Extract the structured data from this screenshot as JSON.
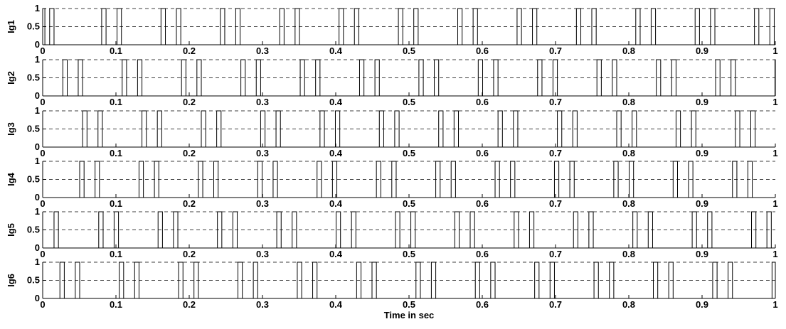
{
  "chart_data": [
    {
      "type": "line",
      "ylabel": "Ig1",
      "xlim": [
        0,
        1
      ],
      "ylim": [
        0,
        1
      ],
      "yticks": [
        "0",
        "0.5",
        "1"
      ],
      "xticks": [
        "0",
        "0.1",
        "0.2",
        "0.3",
        "0.4",
        "0.5",
        "0.6",
        "0.7",
        "0.8",
        "0.9",
        "1"
      ],
      "grid_y": true,
      "pulses": [
        [
          0.0,
          0.003
        ],
        [
          0.0095,
          0.0155
        ],
        [
          0.0805,
          0.0865
        ],
        [
          0.1015,
          0.1075
        ],
        [
          0.1615,
          0.1675
        ],
        [
          0.1825,
          0.1885
        ],
        [
          0.2425,
          0.2485
        ],
        [
          0.2635,
          0.2695
        ],
        [
          0.3235,
          0.3295
        ],
        [
          0.3445,
          0.3505
        ],
        [
          0.4045,
          0.4105
        ],
        [
          0.4255,
          0.4315
        ],
        [
          0.4855,
          0.4915
        ],
        [
          0.5065,
          0.5125
        ],
        [
          0.5665,
          0.5725
        ],
        [
          0.5875,
          0.5935
        ],
        [
          0.6475,
          0.6535
        ],
        [
          0.6685,
          0.6745
        ],
        [
          0.7285,
          0.7345
        ],
        [
          0.7495,
          0.7555
        ],
        [
          0.8095,
          0.8155
        ],
        [
          0.8305,
          0.8365
        ],
        [
          0.8905,
          0.8965
        ],
        [
          0.9115,
          0.9175
        ],
        [
          0.9715,
          0.9775
        ],
        [
          0.9925,
          0.9985
        ]
      ]
    },
    {
      "type": "line",
      "ylabel": "Ig2",
      "xlim": [
        0,
        1
      ],
      "ylim": [
        0,
        1
      ],
      "yticks": [
        "0",
        "0.5",
        "1"
      ],
      "xticks": [
        "0",
        "0.1",
        "0.2",
        "0.3",
        "0.4",
        "0.5",
        "0.6",
        "0.7",
        "0.8",
        "0.9",
        "1"
      ],
      "grid_y": true,
      "pulses": [
        [
          0.0275,
          0.0335
        ],
        [
          0.0485,
          0.0545
        ],
        [
          0.1085,
          0.1145
        ],
        [
          0.1295,
          0.1355
        ],
        [
          0.1895,
          0.1955
        ],
        [
          0.2105,
          0.2165
        ],
        [
          0.2705,
          0.2765
        ],
        [
          0.2915,
          0.2975
        ],
        [
          0.3515,
          0.3575
        ],
        [
          0.3725,
          0.3785
        ],
        [
          0.4325,
          0.4385
        ],
        [
          0.4535,
          0.4595
        ],
        [
          0.5135,
          0.5195
        ],
        [
          0.5345,
          0.5405
        ],
        [
          0.5945,
          0.6005
        ],
        [
          0.6155,
          0.6215
        ],
        [
          0.6755,
          0.6815
        ],
        [
          0.6965,
          0.7025
        ],
        [
          0.7565,
          0.7625
        ],
        [
          0.7775,
          0.7835
        ],
        [
          0.8375,
          0.8435
        ],
        [
          0.8585,
          0.8645
        ],
        [
          0.9185,
          0.9245
        ],
        [
          0.9395,
          0.9455
        ],
        [
          0.9995,
          1.0
        ]
      ]
    },
    {
      "type": "line",
      "ylabel": "Ig3",
      "xlim": [
        0,
        1
      ],
      "ylim": [
        0,
        1
      ],
      "yticks": [
        "0",
        "0.5",
        "1"
      ],
      "xticks": [
        "0",
        "0.1",
        "0.2",
        "0.3",
        "0.4",
        "0.5",
        "0.6",
        "0.7",
        "0.8",
        "0.9",
        "1"
      ],
      "grid_y": true,
      "pulses": [
        [
          0.0545,
          0.0605
        ],
        [
          0.0755,
          0.0815
        ],
        [
          0.1355,
          0.1415
        ],
        [
          0.1565,
          0.1625
        ],
        [
          0.2165,
          0.2225
        ],
        [
          0.2375,
          0.2435
        ],
        [
          0.2975,
          0.3035
        ],
        [
          0.3185,
          0.3245
        ],
        [
          0.3785,
          0.3845
        ],
        [
          0.3995,
          0.4055
        ],
        [
          0.4595,
          0.4655
        ],
        [
          0.4805,
          0.4865
        ],
        [
          0.5405,
          0.5465
        ],
        [
          0.5615,
          0.5675
        ],
        [
          0.6215,
          0.6275
        ],
        [
          0.6425,
          0.6485
        ],
        [
          0.7025,
          0.7085
        ],
        [
          0.7235,
          0.7295
        ],
        [
          0.7835,
          0.7895
        ],
        [
          0.8045,
          0.8105
        ],
        [
          0.8645,
          0.8705
        ],
        [
          0.8855,
          0.8915
        ],
        [
          0.9455,
          0.9515
        ],
        [
          0.9665,
          0.9725
        ]
      ]
    },
    {
      "type": "line",
      "ylabel": "Ig4",
      "xlim": [
        0,
        1
      ],
      "ylim": [
        0,
        1
      ],
      "yticks": [
        "0",
        "0.5",
        "1"
      ],
      "xticks": [
        "0",
        "0.1",
        "0.2",
        "0.3",
        "0.4",
        "0.5",
        "0.6",
        "0.7",
        "0.8",
        "0.9",
        "1"
      ],
      "grid_y": true,
      "pulses": [
        [
          0.0505,
          0.0565
        ],
        [
          0.0715,
          0.0775
        ],
        [
          0.1315,
          0.1375
        ],
        [
          0.1525,
          0.1585
        ],
        [
          0.2125,
          0.2185
        ],
        [
          0.2335,
          0.2395
        ],
        [
          0.2935,
          0.2995
        ],
        [
          0.3145,
          0.3205
        ],
        [
          0.3745,
          0.3805
        ],
        [
          0.3955,
          0.4015
        ],
        [
          0.4555,
          0.4615
        ],
        [
          0.4765,
          0.4825
        ],
        [
          0.5365,
          0.5425
        ],
        [
          0.5575,
          0.5635
        ],
        [
          0.6175,
          0.6235
        ],
        [
          0.6385,
          0.6445
        ],
        [
          0.6985,
          0.7045
        ],
        [
          0.7195,
          0.7255
        ],
        [
          0.7795,
          0.7855
        ],
        [
          0.8005,
          0.8065
        ],
        [
          0.8605,
          0.8665
        ],
        [
          0.8815,
          0.8875
        ],
        [
          0.9415,
          0.9475
        ],
        [
          0.9625,
          0.9685
        ]
      ]
    },
    {
      "type": "line",
      "ylabel": "Ig5",
      "xlim": [
        0,
        1
      ],
      "ylim": [
        0,
        1
      ],
      "yticks": [
        "0",
        "0.5",
        "1"
      ],
      "xticks": [
        "0",
        "0.1",
        "0.2",
        "0.3",
        "0.4",
        "0.5",
        "0.6",
        "0.7",
        "0.8",
        "0.9",
        "1"
      ],
      "grid_y": true,
      "pulses": [
        [
          0.0155,
          0.0215
        ],
        [
          0.0765,
          0.0825
        ],
        [
          0.0975,
          0.1035
        ],
        [
          0.1575,
          0.1635
        ],
        [
          0.1785,
          0.1845
        ],
        [
          0.2385,
          0.2445
        ],
        [
          0.2595,
          0.2655
        ],
        [
          0.3195,
          0.3255
        ],
        [
          0.3405,
          0.3465
        ],
        [
          0.4005,
          0.4065
        ],
        [
          0.4215,
          0.4275
        ],
        [
          0.4815,
          0.4875
        ],
        [
          0.5025,
          0.5085
        ],
        [
          0.5625,
          0.5685
        ],
        [
          0.5835,
          0.5895
        ],
        [
          0.6435,
          0.6495
        ],
        [
          0.6645,
          0.6705
        ],
        [
          0.7245,
          0.7305
        ],
        [
          0.7455,
          0.7515
        ],
        [
          0.8055,
          0.8115
        ],
        [
          0.8265,
          0.8325
        ],
        [
          0.8865,
          0.8925
        ],
        [
          0.9075,
          0.9135
        ],
        [
          0.9675,
          0.9735
        ],
        [
          0.9885,
          0.9945
        ]
      ]
    },
    {
      "type": "line",
      "ylabel": "Ig6",
      "xlim": [
        0,
        1
      ],
      "ylim": [
        0,
        1
      ],
      "yticks": [
        "0",
        "0.5",
        "1"
      ],
      "xticks": [
        "0",
        "0.1",
        "0.2",
        "0.3",
        "0.4",
        "0.5",
        "0.6",
        "0.7",
        "0.8",
        "0.9",
        "1"
      ],
      "grid_y": true,
      "xlabel": "Time in sec",
      "pulses": [
        [
          0.0235,
          0.0295
        ],
        [
          0.0445,
          0.0505
        ],
        [
          0.1045,
          0.1105
        ],
        [
          0.1255,
          0.1315
        ],
        [
          0.1855,
          0.1915
        ],
        [
          0.2065,
          0.2125
        ],
        [
          0.2665,
          0.2725
        ],
        [
          0.2875,
          0.2935
        ],
        [
          0.3475,
          0.3535
        ],
        [
          0.3685,
          0.3745
        ],
        [
          0.4285,
          0.4345
        ],
        [
          0.4495,
          0.4555
        ],
        [
          0.5095,
          0.5155
        ],
        [
          0.5305,
          0.5365
        ],
        [
          0.5905,
          0.5965
        ],
        [
          0.6115,
          0.6175
        ],
        [
          0.6715,
          0.6775
        ],
        [
          0.6925,
          0.6985
        ],
        [
          0.7525,
          0.7585
        ],
        [
          0.7735,
          0.7795
        ],
        [
          0.8335,
          0.8395
        ],
        [
          0.8545,
          0.8605
        ],
        [
          0.9145,
          0.9205
        ],
        [
          0.9355,
          0.9415
        ],
        [
          0.9955,
          1.0
        ]
      ]
    }
  ]
}
